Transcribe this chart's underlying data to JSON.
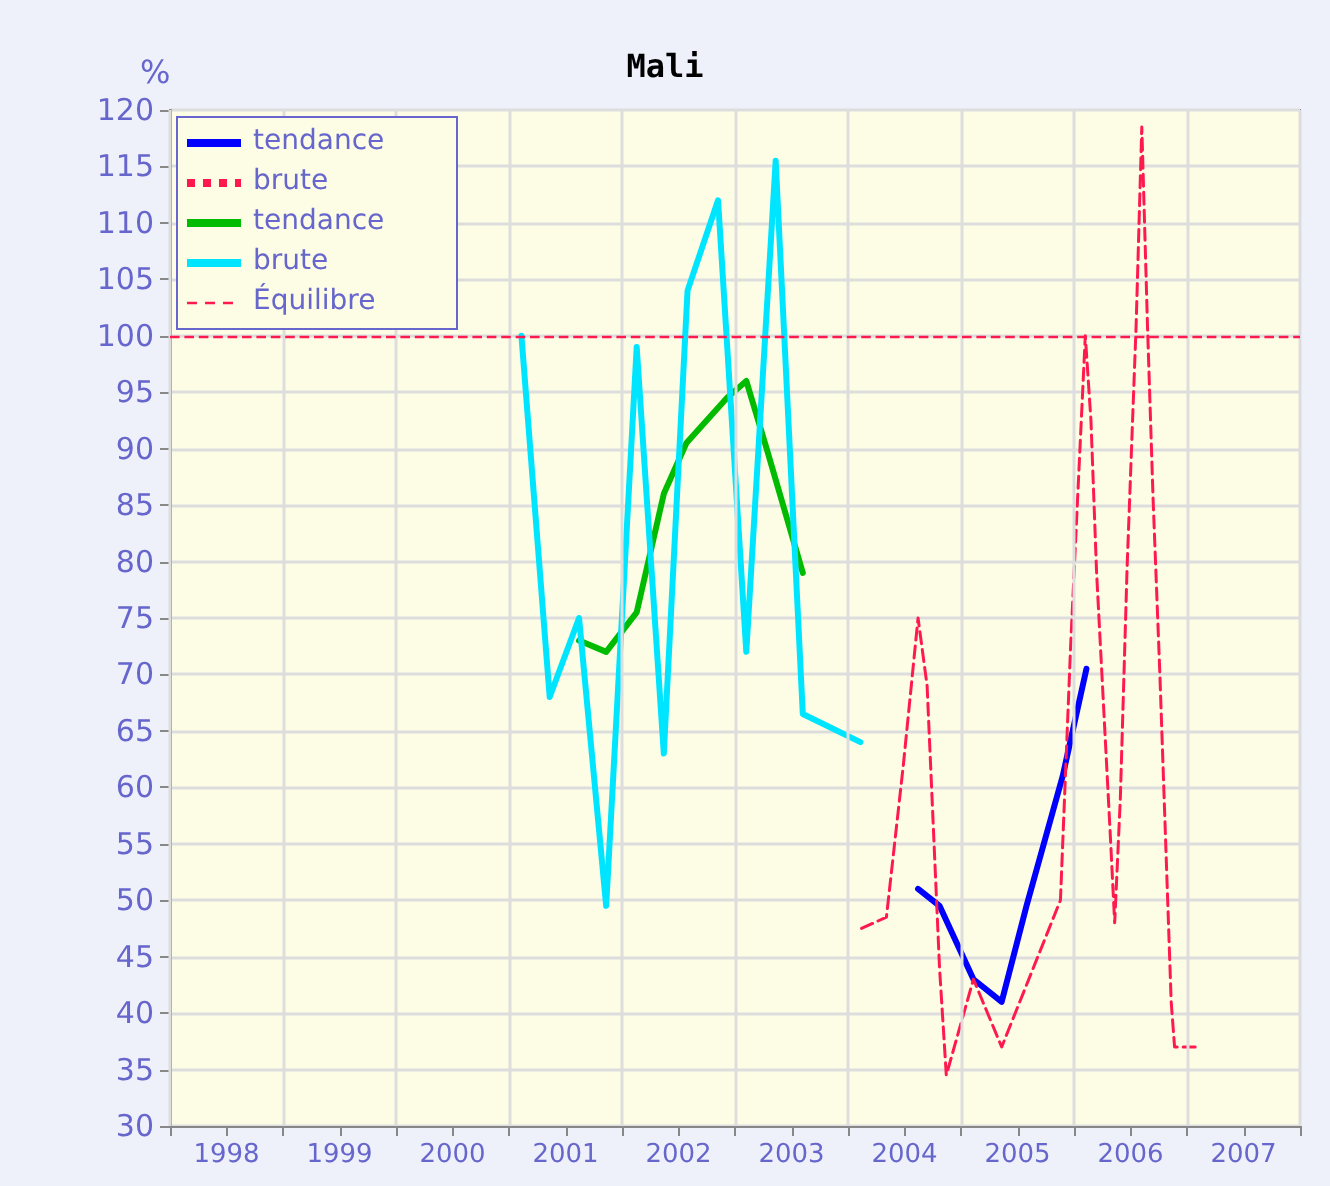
{
  "chart_data": {
    "type": "line",
    "title": "Mali",
    "ylabel": "%",
    "xlim": [
      1997.5,
      2007.5
    ],
    "xticks": [
      {
        "value": 1997.5,
        "label": null
      },
      1998,
      {
        "value": 1998.5,
        "label": null
      },
      1999,
      {
        "value": 1999.5,
        "label": null
      },
      2000,
      {
        "value": 2000.5,
        "label": null
      },
      2001,
      {
        "value": 2001.5,
        "label": null
      },
      2002,
      {
        "value": 2002.5,
        "label": null
      },
      2003,
      {
        "value": 2003.5,
        "label": null
      },
      2004,
      {
        "value": 2004.5,
        "label": null
      },
      2005,
      {
        "value": 2005.5,
        "label": null
      },
      2006,
      {
        "value": 2006.5,
        "label": null
      },
      2007,
      {
        "value": 2007.5,
        "label": null
      }
    ],
    "ylim": [
      30,
      120
    ],
    "yticks": [
      30,
      35,
      40,
      45,
      50,
      55,
      60,
      65,
      70,
      75,
      80,
      85,
      90,
      95,
      100,
      105,
      110,
      115,
      120
    ],
    "grid": true,
    "legend": "top left",
    "marker": "none",
    "series": [
      {
        "name": "tendance",
        "color": "#0000ff",
        "line_style": "solid",
        "x": [
          2004.12,
          2004.31,
          2004.61,
          2004.86,
          2005.08,
          2005.4,
          2005.61
        ],
        "values": [
          51,
          49.5,
          43,
          41,
          49.5,
          61,
          70.5
        ]
      },
      {
        "name": "brute",
        "color": "#ff1a4d",
        "line_style": "dashed",
        "x": [
          2003.62,
          2003.84,
          2003.99,
          2004.12,
          2004.2,
          2004.31,
          2004.37,
          2004.61,
          2004.86,
          2005.38,
          2005.47,
          2005.6,
          2005.65,
          2005.7,
          2005.82,
          2005.86,
          2005.91,
          2005.97,
          2006.05,
          2006.1,
          2006.15,
          2006.2,
          2006.26,
          2006.36,
          2006.39,
          2006.62
        ],
        "values": [
          47.5,
          48.5,
          62,
          75,
          69,
          44,
          34.5,
          43,
          37,
          50,
          72.5,
          100,
          92.5,
          79,
          56,
          48,
          59,
          79.5,
          101,
          118.5,
          101,
          85.5,
          70,
          41,
          37,
          37
        ]
      },
      {
        "name": "tendance",
        "color": "#00bb00",
        "line_style": "solid",
        "x": [
          2001.12,
          2001.36,
          2001.63,
          2001.87,
          2002.07,
          2002.43,
          2002.6,
          2002.78,
          2003.1
        ],
        "values": [
          73,
          72,
          75.5,
          86,
          90.5,
          94.5,
          96,
          90,
          79
        ]
      },
      {
        "name": "brute",
        "color": "#00e5ff",
        "line_style": "solid",
        "x": [
          2000.61,
          2000.86,
          2001.12,
          2001.36,
          2001.63,
          2001.87,
          2002.08,
          2002.35,
          2002.6,
          2002.86,
          2003.1,
          2003.61
        ],
        "values": [
          100,
          68,
          75,
          49.5,
          99,
          63,
          104,
          112,
          72,
          115.5,
          66.5,
          64
        ]
      }
    ],
    "ref_lines": [
      {
        "axis": "y",
        "value": 100,
        "label": "Équilibre",
        "color": "#ff1a4d",
        "line_style": "dashed"
      }
    ]
  }
}
